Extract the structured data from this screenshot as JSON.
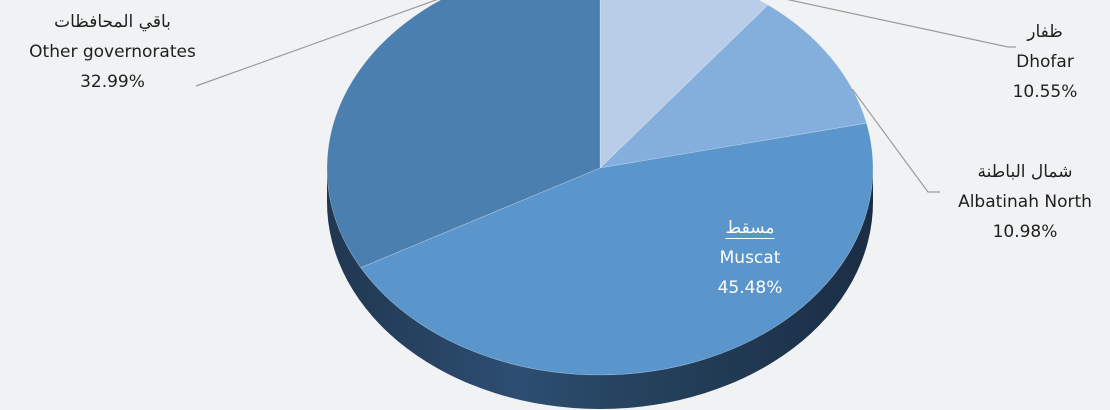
{
  "chart_data": {
    "type": "pie",
    "style": "3d-tilted",
    "slices": [
      {
        "label_ar": "ظفار",
        "label_en": "Dhofar",
        "value": 10.55,
        "value_label": "10.55%",
        "color": "#b9cde8"
      },
      {
        "label_ar": "شمال الباطنة",
        "label_en": "Albatinah North",
        "value": 10.98,
        "value_label": "10.98%",
        "color": "#84afdc"
      },
      {
        "label_ar": "مسقط",
        "label_en": "Muscat",
        "value": 45.48,
        "value_label": "45.48%",
        "color": "#5a95cc"
      },
      {
        "label_ar": "باقي المحافظات",
        "label_en": "Other governorates",
        "value": 32.99,
        "value_label": "32.99%",
        "color": "#4b7fb0"
      }
    ],
    "start": "top",
    "direction": "clockwise",
    "legend": "none",
    "data_labels": "outside-with-leader-lines"
  }
}
